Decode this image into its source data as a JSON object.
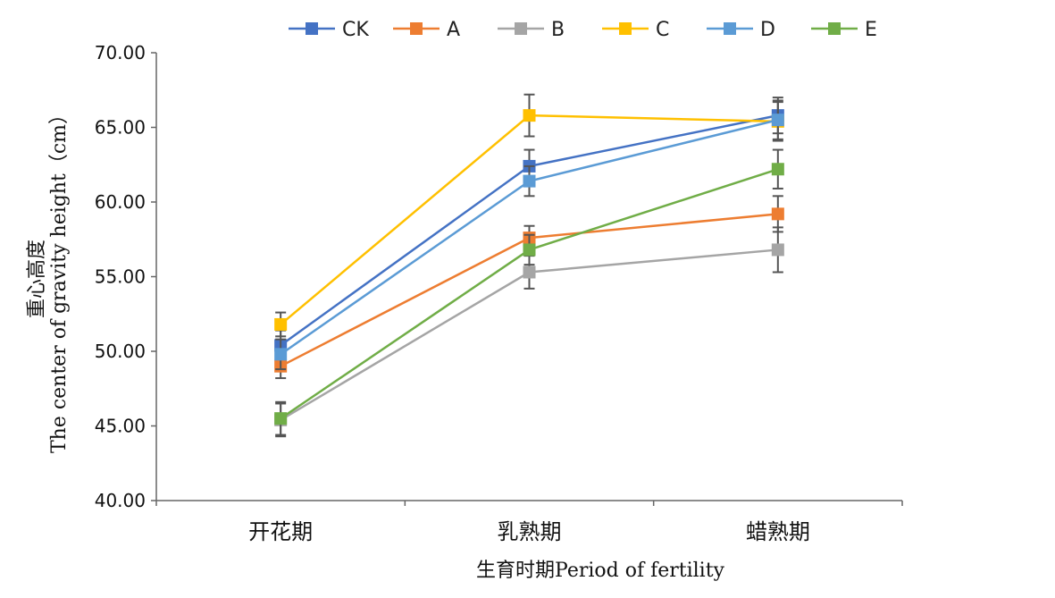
{
  "chart_data": {
    "type": "line",
    "categories": [
      "开花期",
      "乳熟期",
      "蜡熟期"
    ],
    "xlabel": "生育时期Period of fertility",
    "ylabel_zh": "重心高度",
    "ylabel_en": "The center of gravity height（cm）",
    "ylim": [
      40,
      70
    ],
    "yticks": [
      "40.00",
      "45.00",
      "50.00",
      "55.00",
      "60.00",
      "65.00",
      "70.00"
    ],
    "grid": false,
    "legend_position": "top",
    "error_bars": true,
    "series": [
      {
        "name": "CK",
        "color": "#4472C4",
        "values": [
          50.4,
          62.4,
          65.8
        ],
        "errors": [
          1.0,
          1.1,
          1.2
        ]
      },
      {
        "name": "A",
        "color": "#ED7D31",
        "values": [
          49.0,
          57.6,
          59.2
        ],
        "errors": [
          0.8,
          0.8,
          1.2
        ]
      },
      {
        "name": "B",
        "color": "#A5A5A5",
        "values": [
          45.4,
          55.3,
          56.8
        ],
        "errors": [
          1.1,
          1.1,
          1.5
        ]
      },
      {
        "name": "C",
        "color": "#FFC000",
        "values": [
          51.8,
          65.8,
          65.4
        ],
        "errors": [
          0.8,
          1.4,
          1.3
        ]
      },
      {
        "name": "D",
        "color": "#5B9BD5",
        "values": [
          49.8,
          61.4,
          65.5
        ],
        "errors": [
          1.0,
          1.0,
          1.3
        ]
      },
      {
        "name": "E",
        "color": "#70AD47",
        "values": [
          45.5,
          56.8,
          62.2
        ],
        "errors": [
          1.1,
          1.0,
          1.3
        ]
      }
    ]
  }
}
